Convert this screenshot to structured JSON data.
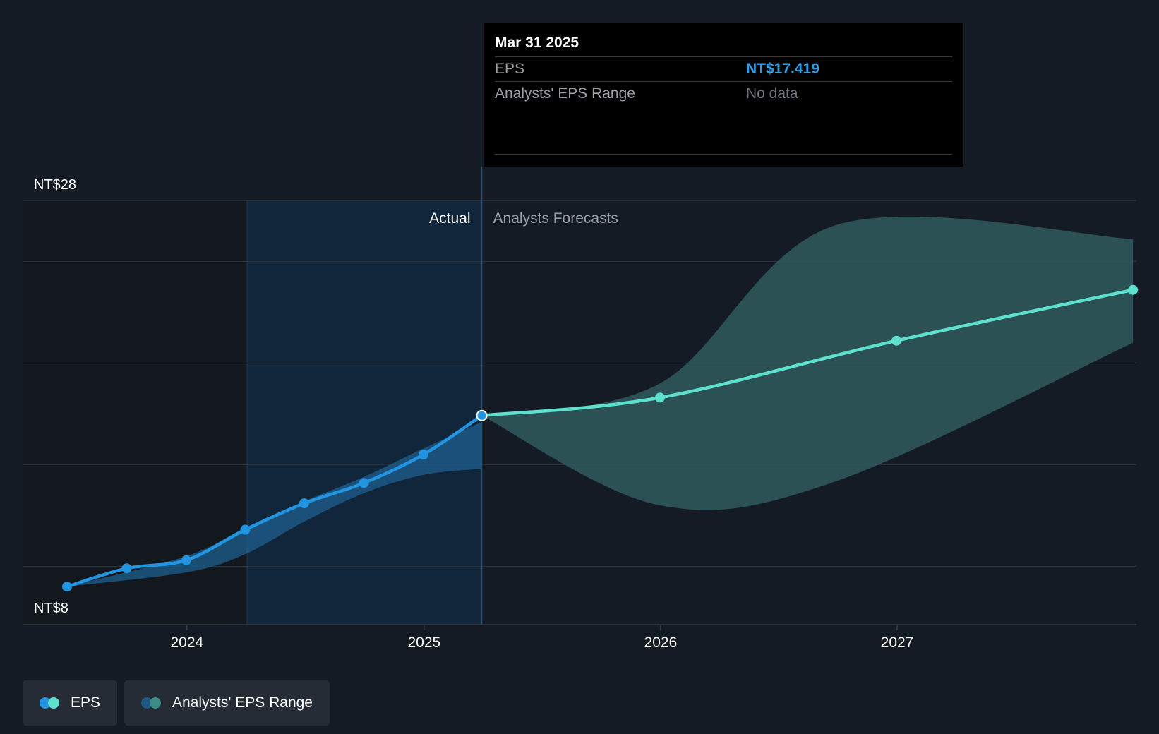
{
  "chart_data": {
    "type": "line",
    "y_axis": {
      "min_label": "NT$8",
      "max_label": "NT$28",
      "ylim": [
        8,
        28
      ]
    },
    "x_axis": {
      "ticks": [
        "2024",
        "2025",
        "2026",
        "2027"
      ],
      "range": [
        "2023-06-30",
        "2027-12-31"
      ]
    },
    "regions": {
      "actual_label": "Actual",
      "forecast_label": "Analysts Forecasts"
    },
    "series": [
      {
        "name": "EPS",
        "kind": "actual",
        "points": [
          {
            "x": "2023-06-30",
            "y": 9.0
          },
          {
            "x": "2023-09-30",
            "y": 9.9
          },
          {
            "x": "2023-12-31",
            "y": 10.3
          },
          {
            "x": "2024-03-31",
            "y": 11.8
          },
          {
            "x": "2024-06-30",
            "y": 13.1
          },
          {
            "x": "2024-09-30",
            "y": 14.1
          },
          {
            "x": "2024-12-31",
            "y": 15.5
          },
          {
            "x": "2025-03-31",
            "y": 17.419
          }
        ]
      },
      {
        "name": "EPS",
        "kind": "forecast",
        "points": [
          {
            "x": "2025-03-31",
            "y": 17.419
          },
          {
            "x": "2025-12-31",
            "y": 18.3
          },
          {
            "x": "2026-12-31",
            "y": 21.1
          },
          {
            "x": "2027-12-31",
            "y": 23.6
          }
        ]
      }
    ],
    "ranges": [
      {
        "name": "Analysts' EPS Range",
        "kind": "actual",
        "points": [
          {
            "x": "2023-06-30",
            "low": 9.0,
            "high": 9.0
          },
          {
            "x": "2023-12-31",
            "low": 9.7,
            "high": 10.5
          },
          {
            "x": "2024-03-31",
            "low": 10.6,
            "high": 11.9
          },
          {
            "x": "2024-06-30",
            "low": 12.2,
            "high": 13.2
          },
          {
            "x": "2024-09-30",
            "low": 13.6,
            "high": 14.4
          },
          {
            "x": "2024-12-31",
            "low": 14.5,
            "high": 15.8
          },
          {
            "x": "2025-03-31",
            "low": 14.8,
            "high": 17.1
          }
        ]
      },
      {
        "name": "Analysts' EPS Range",
        "kind": "forecast",
        "points": [
          {
            "x": "2025-03-31",
            "low": 17.419,
            "high": 17.419
          },
          {
            "x": "2025-12-31",
            "low": 13.0,
            "high": 19.0
          },
          {
            "x": "2026-09-30",
            "low": 14.2,
            "high": 26.8
          },
          {
            "x": "2027-12-31",
            "low": 21.0,
            "high": 26.1
          }
        ]
      }
    ],
    "highlight": {
      "x": "2025-03-31"
    },
    "grid": true,
    "legend_position": "bottom-left"
  },
  "tooltip": {
    "date": "Mar 31 2025",
    "eps_label": "EPS",
    "eps_value": "NT$17.419",
    "range_label": "Analysts' EPS Range",
    "range_value": "No data"
  },
  "legend": [
    {
      "label": "EPS",
      "colors": [
        "#2394df",
        "#5ee0cf"
      ]
    },
    {
      "label": "Analysts' EPS Range",
      "colors": [
        "#1f5a84",
        "#3b8c87"
      ]
    }
  ],
  "colors": {
    "actual_line": "#2394df",
    "forecast_line": "#5ee0cf",
    "actual_band": "#1d5f8f",
    "forecast_band": "#2f5b5d",
    "actual_shade": "#11263a",
    "grid": "#2b323c",
    "axis_text": "#ffffff"
  }
}
